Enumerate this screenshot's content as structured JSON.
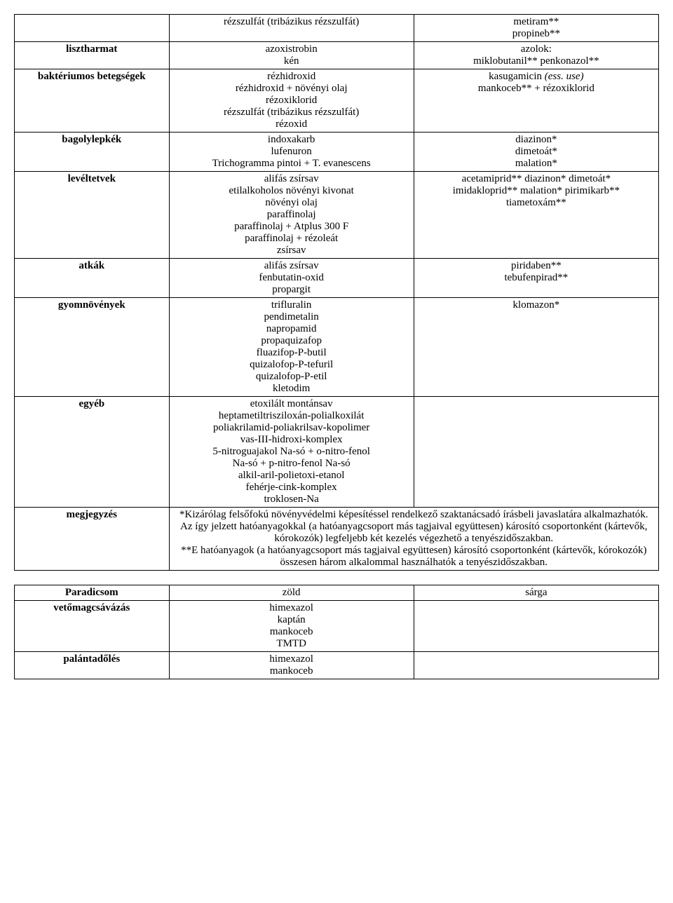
{
  "table1": {
    "rows": [
      {
        "c1": [],
        "c2": [
          "rézszulfát (tribázikus rézszulfát)"
        ],
        "c3": [
          "metiram**",
          "propineb**"
        ]
      },
      {
        "c1": [
          "lisztharmat"
        ],
        "c2": [
          "azoxistrobin",
          "kén"
        ],
        "c3": [
          "azolok:",
          "miklobutanil** penkonazol**"
        ]
      },
      {
        "c1": [
          "baktériumos betegségek"
        ],
        "c2": [
          "rézhidroxid",
          "rézhidroxid + növényi olaj",
          "rézoxiklorid",
          "rézszulfát (tribázikus rézszulfát)",
          "rézoxid"
        ],
        "c3_parts": [
          {
            "text": "kasugamicin ",
            "italic": false
          },
          {
            "text": "(ess. use)",
            "italic": true
          }
        ],
        "c3_rest": [
          "mankoceb** + rézoxiklorid"
        ]
      },
      {
        "c1": [
          "bagolylepkék"
        ],
        "c2": [
          "indoxakarb",
          "lufenuron",
          "Trichogramma pintoi + T. evanescens"
        ],
        "c3": [
          "diazinon*",
          "dimetoát*",
          "malation*"
        ]
      },
      {
        "c1": [
          "levéltetvek"
        ],
        "c2": [
          "alifás zsírsav",
          "etilalkoholos növényi kivonat",
          "növényi olaj",
          "paraffinolaj",
          "paraffinolaj + Atplus 300 F",
          "paraffinolaj + rézoleát",
          "zsírsav"
        ],
        "c3": [
          "acetamiprid** diazinon* dimetoát*",
          "imidakloprid** malation* pirimikarb**",
          "tiametoxám**"
        ]
      },
      {
        "c1": [
          "atkák"
        ],
        "c2": [
          "alifás zsírsav",
          "fenbutatin-oxid",
          "propargit"
        ],
        "c3": [
          "piridaben**",
          "tebufenpirad**"
        ]
      },
      {
        "c1": [
          "gyomnövények"
        ],
        "c2": [
          "trifluralin",
          "pendimetalin",
          "napropamid",
          "propaquizafop",
          "fluazifop-P-butil",
          "quizalofop-P-tefuril",
          "quizalofop-P-etil",
          "kletodim"
        ],
        "c3": [
          "klomazon*"
        ]
      },
      {
        "c1": [
          "egyéb"
        ],
        "c2": [
          "etoxilált montánsav",
          "heptametiltrisziloxán-polialkoxilát",
          "poliakrilamid-poliakrilsav-kopolimer",
          "vas-III-hidroxi-komplex",
          "5-nitroguajakol Na-só + o-nitro-fenol",
          "Na-só + p-nitro-fenol Na-só",
          "alkil-aril-polietoxi-etanol",
          "fehérje-cink-komplex",
          "troklosen-Na"
        ],
        "c3": []
      },
      {
        "c1": [
          "megjegyzés"
        ],
        "merged_note": "*Kizárólag felsőfokú növényvédelmi képesítéssel rendelkező szaktanácsadó írásbeli javaslatára alkalmazhatók. Az így jelzett hatóanyagokkal (a hatóanyagcsoport más tagjaival együttesen) károsító csoportonként (kártevők, kórokozók) legfeljebb két kezelés végezhető a tenyészidőszakban.\n**E hatóanyagok (a hatóanyagcsoport más tagjaival együttesen) károsító csoportonként (kártevők, kórokozók) összesen három alkalommal használhatók a tenyészidőszakban."
      }
    ]
  },
  "table2": {
    "rows": [
      {
        "c1": [
          "Paradicsom"
        ],
        "c2": [
          "zöld"
        ],
        "c3": [
          "sárga"
        ]
      },
      {
        "c1": [
          "vetőmagcsávázás"
        ],
        "c2": [
          "himexazol",
          "kaptán",
          "mankoceb",
          "TMTD"
        ],
        "c3": []
      },
      {
        "c1": [
          "palántadőlés"
        ],
        "c2": [
          "himexazol",
          "mankoceb"
        ],
        "c3": []
      }
    ]
  }
}
